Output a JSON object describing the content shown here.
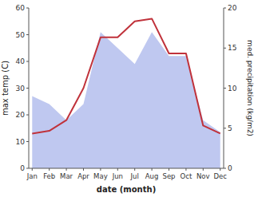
{
  "chart_data": {
    "type": "line",
    "xlabel": "date (month)",
    "ylabel": "max temp (C)",
    "y2label": "med. precipitation (kg/m2)",
    "categories": [
      "Jan",
      "Feb",
      "Mar",
      "Apr",
      "May",
      "Jun",
      "Jul",
      "Aug",
      "Sep",
      "Oct",
      "Nov",
      "Dec"
    ],
    "series": [
      {
        "type": "area",
        "color": "#bfc8f0",
        "axis": "y2",
        "values": [
          9,
          8,
          6,
          8,
          17,
          15,
          13,
          17,
          14,
          14,
          6,
          4.5
        ]
      },
      {
        "type": "line",
        "color": "#c0323b",
        "values": [
          13,
          14,
          18,
          30,
          49,
          49,
          55,
          56,
          43,
          43,
          16,
          13
        ]
      }
    ],
    "ylim": [
      0,
      60
    ],
    "yticks": [
      0,
      10,
      20,
      30,
      40,
      50,
      60
    ],
    "y2lim": [
      0,
      20
    ],
    "y2ticks": [
      0,
      5,
      10,
      15,
      20
    ],
    "grid": false
  }
}
